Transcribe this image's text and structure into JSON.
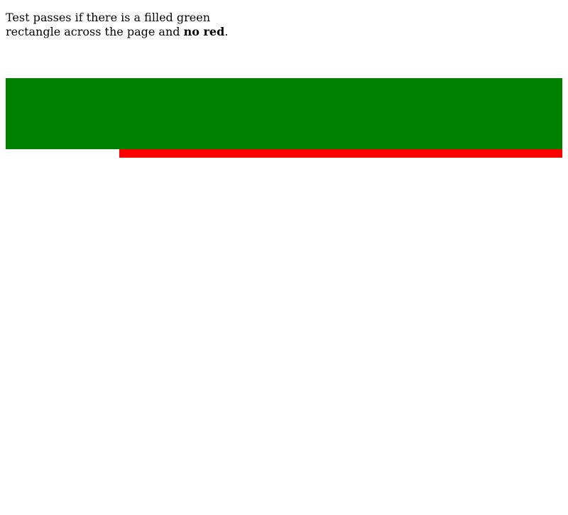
{
  "instructions": {
    "text_before": "Test passes if there is a filled green rectangle across the page and ",
    "emphasis": "no red",
    "text_after": "."
  },
  "colors": {
    "green": "#008000",
    "red": "#ff0000"
  }
}
